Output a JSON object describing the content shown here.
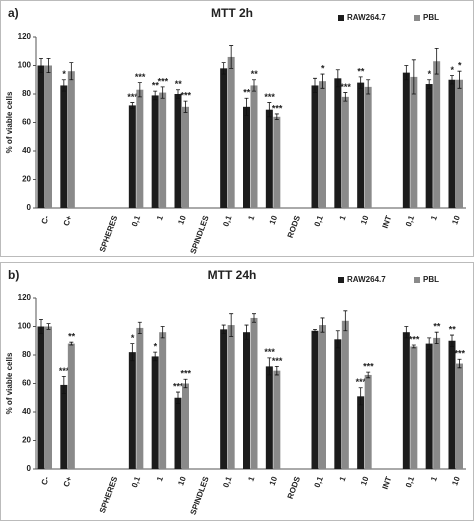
{
  "chart_data": [
    {
      "type": "bar",
      "label": "a)",
      "title": "MTT 2h",
      "y_label": "% of viable cells",
      "categories": [
        "C-",
        "C+",
        null,
        "SPHERES",
        "0,1",
        "1",
        "10",
        "SPINDLES",
        "0,1",
        "1",
        "10",
        "RODS",
        "0,1",
        "1",
        "10",
        "INT",
        "0,1",
        "1",
        "10"
      ],
      "ylim": [
        0,
        120
      ],
      "yticks": [
        0,
        20,
        40,
        60,
        80,
        100,
        120
      ],
      "legend": "top-right",
      "series": [
        {
          "name": "RAW264.7",
          "color": "#1c1c1c",
          "values": [
            100,
            86,
            null,
            null,
            72,
            79,
            80,
            null,
            98,
            71,
            69,
            null,
            86,
            91,
            88,
            null,
            95,
            87,
            90
          ],
          "errors": [
            5,
            4,
            null,
            null,
            2,
            3,
            3,
            null,
            4,
            6,
            5,
            null,
            5,
            6,
            4,
            null,
            5,
            3,
            3
          ],
          "annotations": [
            null,
            "*",
            null,
            null,
            "***",
            "**",
            "**",
            null,
            null,
            "**",
            "***",
            null,
            null,
            null,
            "**",
            null,
            null,
            "*",
            "*"
          ]
        },
        {
          "name": "PBL",
          "color": "#8a8a8a",
          "values": [
            100,
            96,
            null,
            null,
            83,
            81,
            71,
            null,
            106,
            86,
            64,
            null,
            89,
            78,
            85,
            null,
            92,
            103,
            90
          ],
          "errors": [
            5,
            6,
            null,
            null,
            5,
            4,
            4,
            null,
            8,
            4,
            2,
            null,
            5,
            3,
            5,
            null,
            12,
            9,
            6
          ],
          "annotations": [
            null,
            null,
            null,
            null,
            "***",
            "***",
            "***",
            null,
            null,
            "**",
            "***",
            null,
            "*",
            "***",
            null,
            null,
            null,
            null,
            "*"
          ]
        }
      ]
    },
    {
      "type": "bar",
      "label": "b)",
      "title": "MTT 24h",
      "y_label": "% of viable cells",
      "categories": [
        "C-",
        "C+",
        null,
        "SPHERES",
        "0,1",
        "1",
        "10",
        "SPINDLES",
        "0,1",
        "1",
        "10",
        "RODS",
        "0,1",
        "1",
        "10",
        "INT",
        "0,1",
        "1",
        "10"
      ],
      "ylim": [
        0,
        120
      ],
      "yticks": [
        0,
        20,
        40,
        60,
        80,
        100,
        120
      ],
      "legend": "top-right",
      "series": [
        {
          "name": "RAW264.7",
          "color": "#1c1c1c",
          "values": [
            100,
            59,
            null,
            null,
            82,
            79,
            50,
            null,
            98,
            96,
            72,
            null,
            97,
            91,
            51,
            null,
            96,
            88,
            90
          ],
          "errors": [
            5,
            6,
            null,
            null,
            6,
            3,
            4,
            null,
            3,
            5,
            6,
            null,
            1,
            6,
            6,
            null,
            4,
            4,
            4
          ],
          "annotations": [
            null,
            "***",
            null,
            null,
            "*",
            "*",
            "***",
            null,
            null,
            null,
            "***",
            null,
            null,
            null,
            "***",
            null,
            null,
            null,
            "**"
          ]
        },
        {
          "name": "PBL",
          "color": "#8a8a8a",
          "values": [
            100,
            88,
            null,
            null,
            99,
            96,
            60,
            null,
            101,
            106,
            69,
            null,
            101,
            104,
            66,
            null,
            86,
            92,
            74
          ],
          "errors": [
            2,
            1,
            null,
            null,
            4,
            4,
            3,
            null,
            8,
            3,
            3,
            null,
            5,
            7,
            2,
            null,
            1,
            4,
            3
          ],
          "annotations": [
            null,
            "**",
            null,
            null,
            null,
            null,
            "***",
            null,
            null,
            null,
            "***",
            null,
            null,
            null,
            "***",
            null,
            "***",
            "**",
            "***"
          ]
        }
      ]
    }
  ]
}
